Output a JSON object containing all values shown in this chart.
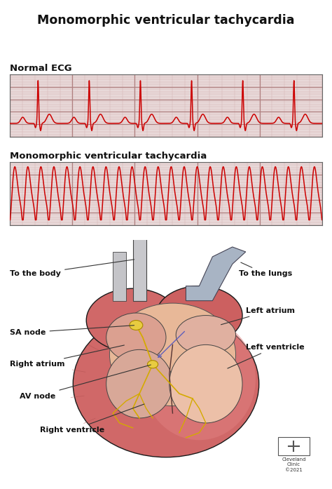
{
  "title": "Monomorphic ventricular tachycardia",
  "title_fontsize": 12.5,
  "title_fontweight": "bold",
  "ecg1_label": "Normal ECG",
  "ecg2_label": "Monomorphic ventricular tachycardia",
  "ecg_label_fontsize": 9.5,
  "ecg_label_fontweight": "bold",
  "ecg_color": "#cc0000",
  "grid_major_color": "#b08080",
  "grid_minor_color": "#d4b0b0",
  "bg_color": "#ffffff",
  "ecg_bg": "#e8d8d8",
  "label_fontsize": 8.0,
  "label_fontweight": "bold",
  "label_color": "#111111",
  "line_color": "#333333",
  "heart_pink": "#d97070",
  "heart_light": "#e8a090",
  "heart_pale": "#f0c8b8",
  "heart_inner": "#e8c0a8",
  "vessel_gray": "#c0c0c8",
  "vessel_blue": "#a8b0c0",
  "conduction_yellow": "#d4aa00",
  "cleveland_text": "Cleveland\nClinic\n©2021"
}
